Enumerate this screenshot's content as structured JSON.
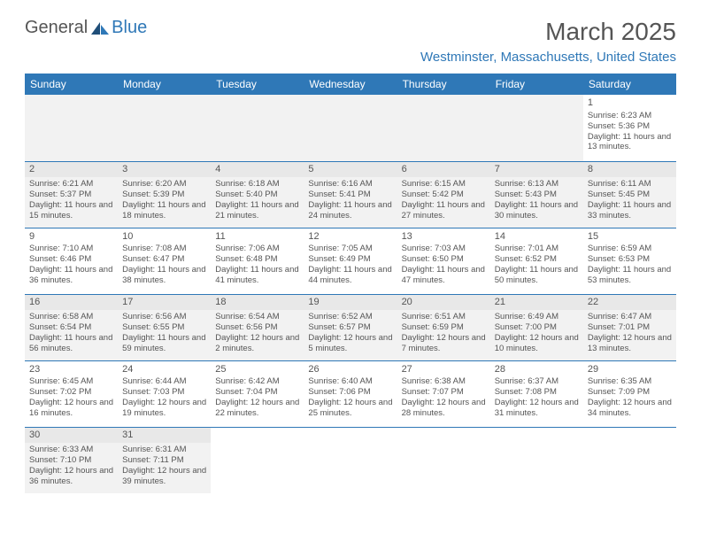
{
  "logo": {
    "text1": "General",
    "text2": "Blue"
  },
  "title": "March 2025",
  "location": "Westminster, Massachusetts, United States",
  "headers": [
    "Sunday",
    "Monday",
    "Tuesday",
    "Wednesday",
    "Thursday",
    "Friday",
    "Saturday"
  ],
  "colors": {
    "brand": "#2f78b7",
    "text": "#555555",
    "grey_bg": "#f2f2f2"
  },
  "weeks": [
    [
      null,
      null,
      null,
      null,
      null,
      null,
      {
        "n": "1",
        "sr": "6:23 AM",
        "ss": "5:36 PM",
        "dl": "11 hours and 13 minutes."
      }
    ],
    [
      {
        "n": "2",
        "sr": "6:21 AM",
        "ss": "5:37 PM",
        "dl": "11 hours and 15 minutes."
      },
      {
        "n": "3",
        "sr": "6:20 AM",
        "ss": "5:39 PM",
        "dl": "11 hours and 18 minutes."
      },
      {
        "n": "4",
        "sr": "6:18 AM",
        "ss": "5:40 PM",
        "dl": "11 hours and 21 minutes."
      },
      {
        "n": "5",
        "sr": "6:16 AM",
        "ss": "5:41 PM",
        "dl": "11 hours and 24 minutes."
      },
      {
        "n": "6",
        "sr": "6:15 AM",
        "ss": "5:42 PM",
        "dl": "11 hours and 27 minutes."
      },
      {
        "n": "7",
        "sr": "6:13 AM",
        "ss": "5:43 PM",
        "dl": "11 hours and 30 minutes."
      },
      {
        "n": "8",
        "sr": "6:11 AM",
        "ss": "5:45 PM",
        "dl": "11 hours and 33 minutes."
      }
    ],
    [
      {
        "n": "9",
        "sr": "7:10 AM",
        "ss": "6:46 PM",
        "dl": "11 hours and 36 minutes."
      },
      {
        "n": "10",
        "sr": "7:08 AM",
        "ss": "6:47 PM",
        "dl": "11 hours and 38 minutes."
      },
      {
        "n": "11",
        "sr": "7:06 AM",
        "ss": "6:48 PM",
        "dl": "11 hours and 41 minutes."
      },
      {
        "n": "12",
        "sr": "7:05 AM",
        "ss": "6:49 PM",
        "dl": "11 hours and 44 minutes."
      },
      {
        "n": "13",
        "sr": "7:03 AM",
        "ss": "6:50 PM",
        "dl": "11 hours and 47 minutes."
      },
      {
        "n": "14",
        "sr": "7:01 AM",
        "ss": "6:52 PM",
        "dl": "11 hours and 50 minutes."
      },
      {
        "n": "15",
        "sr": "6:59 AM",
        "ss": "6:53 PM",
        "dl": "11 hours and 53 minutes."
      }
    ],
    [
      {
        "n": "16",
        "sr": "6:58 AM",
        "ss": "6:54 PM",
        "dl": "11 hours and 56 minutes."
      },
      {
        "n": "17",
        "sr": "6:56 AM",
        "ss": "6:55 PM",
        "dl": "11 hours and 59 minutes."
      },
      {
        "n": "18",
        "sr": "6:54 AM",
        "ss": "6:56 PM",
        "dl": "12 hours and 2 minutes."
      },
      {
        "n": "19",
        "sr": "6:52 AM",
        "ss": "6:57 PM",
        "dl": "12 hours and 5 minutes."
      },
      {
        "n": "20",
        "sr": "6:51 AM",
        "ss": "6:59 PM",
        "dl": "12 hours and 7 minutes."
      },
      {
        "n": "21",
        "sr": "6:49 AM",
        "ss": "7:00 PM",
        "dl": "12 hours and 10 minutes."
      },
      {
        "n": "22",
        "sr": "6:47 AM",
        "ss": "7:01 PM",
        "dl": "12 hours and 13 minutes."
      }
    ],
    [
      {
        "n": "23",
        "sr": "6:45 AM",
        "ss": "7:02 PM",
        "dl": "12 hours and 16 minutes."
      },
      {
        "n": "24",
        "sr": "6:44 AM",
        "ss": "7:03 PM",
        "dl": "12 hours and 19 minutes."
      },
      {
        "n": "25",
        "sr": "6:42 AM",
        "ss": "7:04 PM",
        "dl": "12 hours and 22 minutes."
      },
      {
        "n": "26",
        "sr": "6:40 AM",
        "ss": "7:06 PM",
        "dl": "12 hours and 25 minutes."
      },
      {
        "n": "27",
        "sr": "6:38 AM",
        "ss": "7:07 PM",
        "dl": "12 hours and 28 minutes."
      },
      {
        "n": "28",
        "sr": "6:37 AM",
        "ss": "7:08 PM",
        "dl": "12 hours and 31 minutes."
      },
      {
        "n": "29",
        "sr": "6:35 AM",
        "ss": "7:09 PM",
        "dl": "12 hours and 34 minutes."
      }
    ],
    [
      {
        "n": "30",
        "sr": "6:33 AM",
        "ss": "7:10 PM",
        "dl": "12 hours and 36 minutes."
      },
      {
        "n": "31",
        "sr": "6:31 AM",
        "ss": "7:11 PM",
        "dl": "12 hours and 39 minutes."
      },
      null,
      null,
      null,
      null,
      null
    ]
  ],
  "labels": {
    "sunrise": "Sunrise:",
    "sunset": "Sunset:",
    "daylight": "Daylight:"
  }
}
